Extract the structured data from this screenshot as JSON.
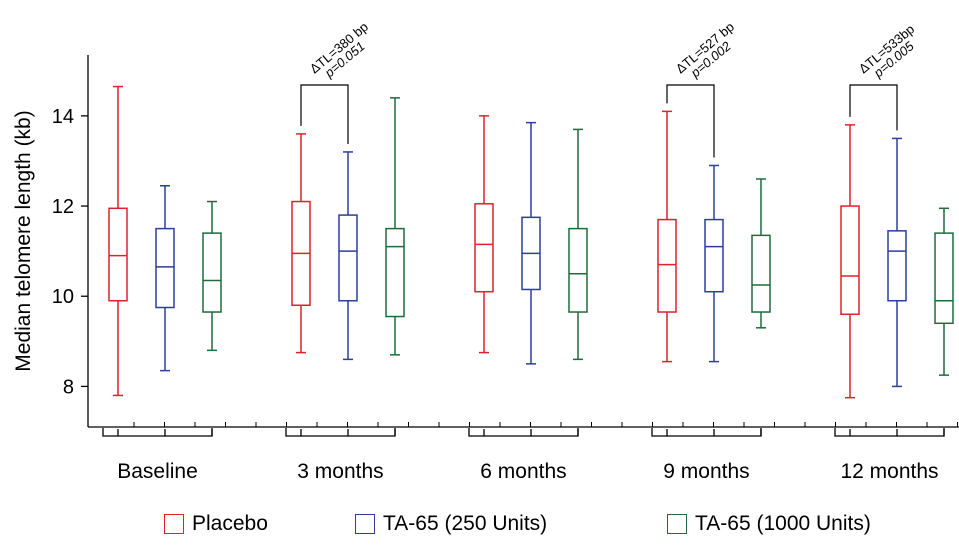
{
  "chart_data": {
    "type": "box",
    "ylabel": "Median telomere length (kb)",
    "xlabel": "",
    "ylim": [
      7.1,
      15.35
    ],
    "yticks": [
      8,
      10,
      12,
      14
    ],
    "categories": [
      "Baseline",
      "3 months",
      "6 months",
      "9 months",
      "12 months"
    ],
    "series": [
      {
        "name": "Placebo",
        "color": "#e0202c",
        "boxes": [
          {
            "min": 7.8,
            "q1": 9.9,
            "median": 10.9,
            "q3": 11.95,
            "max": 14.65
          },
          {
            "min": 8.75,
            "q1": 9.8,
            "median": 10.95,
            "q3": 12.1,
            "max": 13.6
          },
          {
            "min": 8.75,
            "q1": 10.1,
            "median": 11.15,
            "q3": 12.05,
            "max": 14.0
          },
          {
            "min": 8.55,
            "q1": 9.65,
            "median": 10.7,
            "q3": 11.7,
            "max": 14.1
          },
          {
            "min": 7.75,
            "q1": 9.6,
            "median": 10.45,
            "q3": 12.0,
            "max": 13.8
          }
        ]
      },
      {
        "name": "TA-65 (250 Units)",
        "color": "#2c3f9a",
        "boxes": [
          {
            "min": 8.35,
            "q1": 9.75,
            "median": 10.65,
            "q3": 11.5,
            "max": 12.45
          },
          {
            "min": 8.6,
            "q1": 9.9,
            "median": 11.0,
            "q3": 11.8,
            "max": 13.2
          },
          {
            "min": 8.5,
            "q1": 10.15,
            "median": 10.95,
            "q3": 11.75,
            "max": 13.85
          },
          {
            "min": 8.55,
            "q1": 10.1,
            "median": 11.1,
            "q3": 11.7,
            "max": 12.9
          },
          {
            "min": 8.0,
            "q1": 9.9,
            "median": 11.0,
            "q3": 11.45,
            "max": 13.5
          }
        ]
      },
      {
        "name": "TA-65 (1000 Units)",
        "color": "#1f6b3c",
        "boxes": [
          {
            "min": 8.8,
            "q1": 9.65,
            "median": 10.35,
            "q3": 11.4,
            "max": 12.1
          },
          {
            "min": 8.7,
            "q1": 9.55,
            "median": 11.1,
            "q3": 11.5,
            "max": 14.4
          },
          {
            "min": 8.6,
            "q1": 9.65,
            "median": 10.5,
            "q3": 11.5,
            "max": 13.7
          },
          {
            "min": 9.3,
            "q1": 9.65,
            "median": 10.25,
            "q3": 11.35,
            "max": 12.6
          },
          {
            "min": 8.25,
            "q1": 9.4,
            "median": 9.9,
            "q3": 11.4,
            "max": 11.95
          }
        ]
      }
    ],
    "annotations": [
      {
        "group": 1,
        "line1": "ΔTL=380 bp",
        "line2": "p=0.051"
      },
      {
        "group": 3,
        "line1": "ΔTL=527 bp",
        "line2": "p=0.002"
      },
      {
        "group": 4,
        "line1": "ΔTL=533bp",
        "line2": "p=0.005"
      }
    ],
    "legend_position": "bottom"
  }
}
